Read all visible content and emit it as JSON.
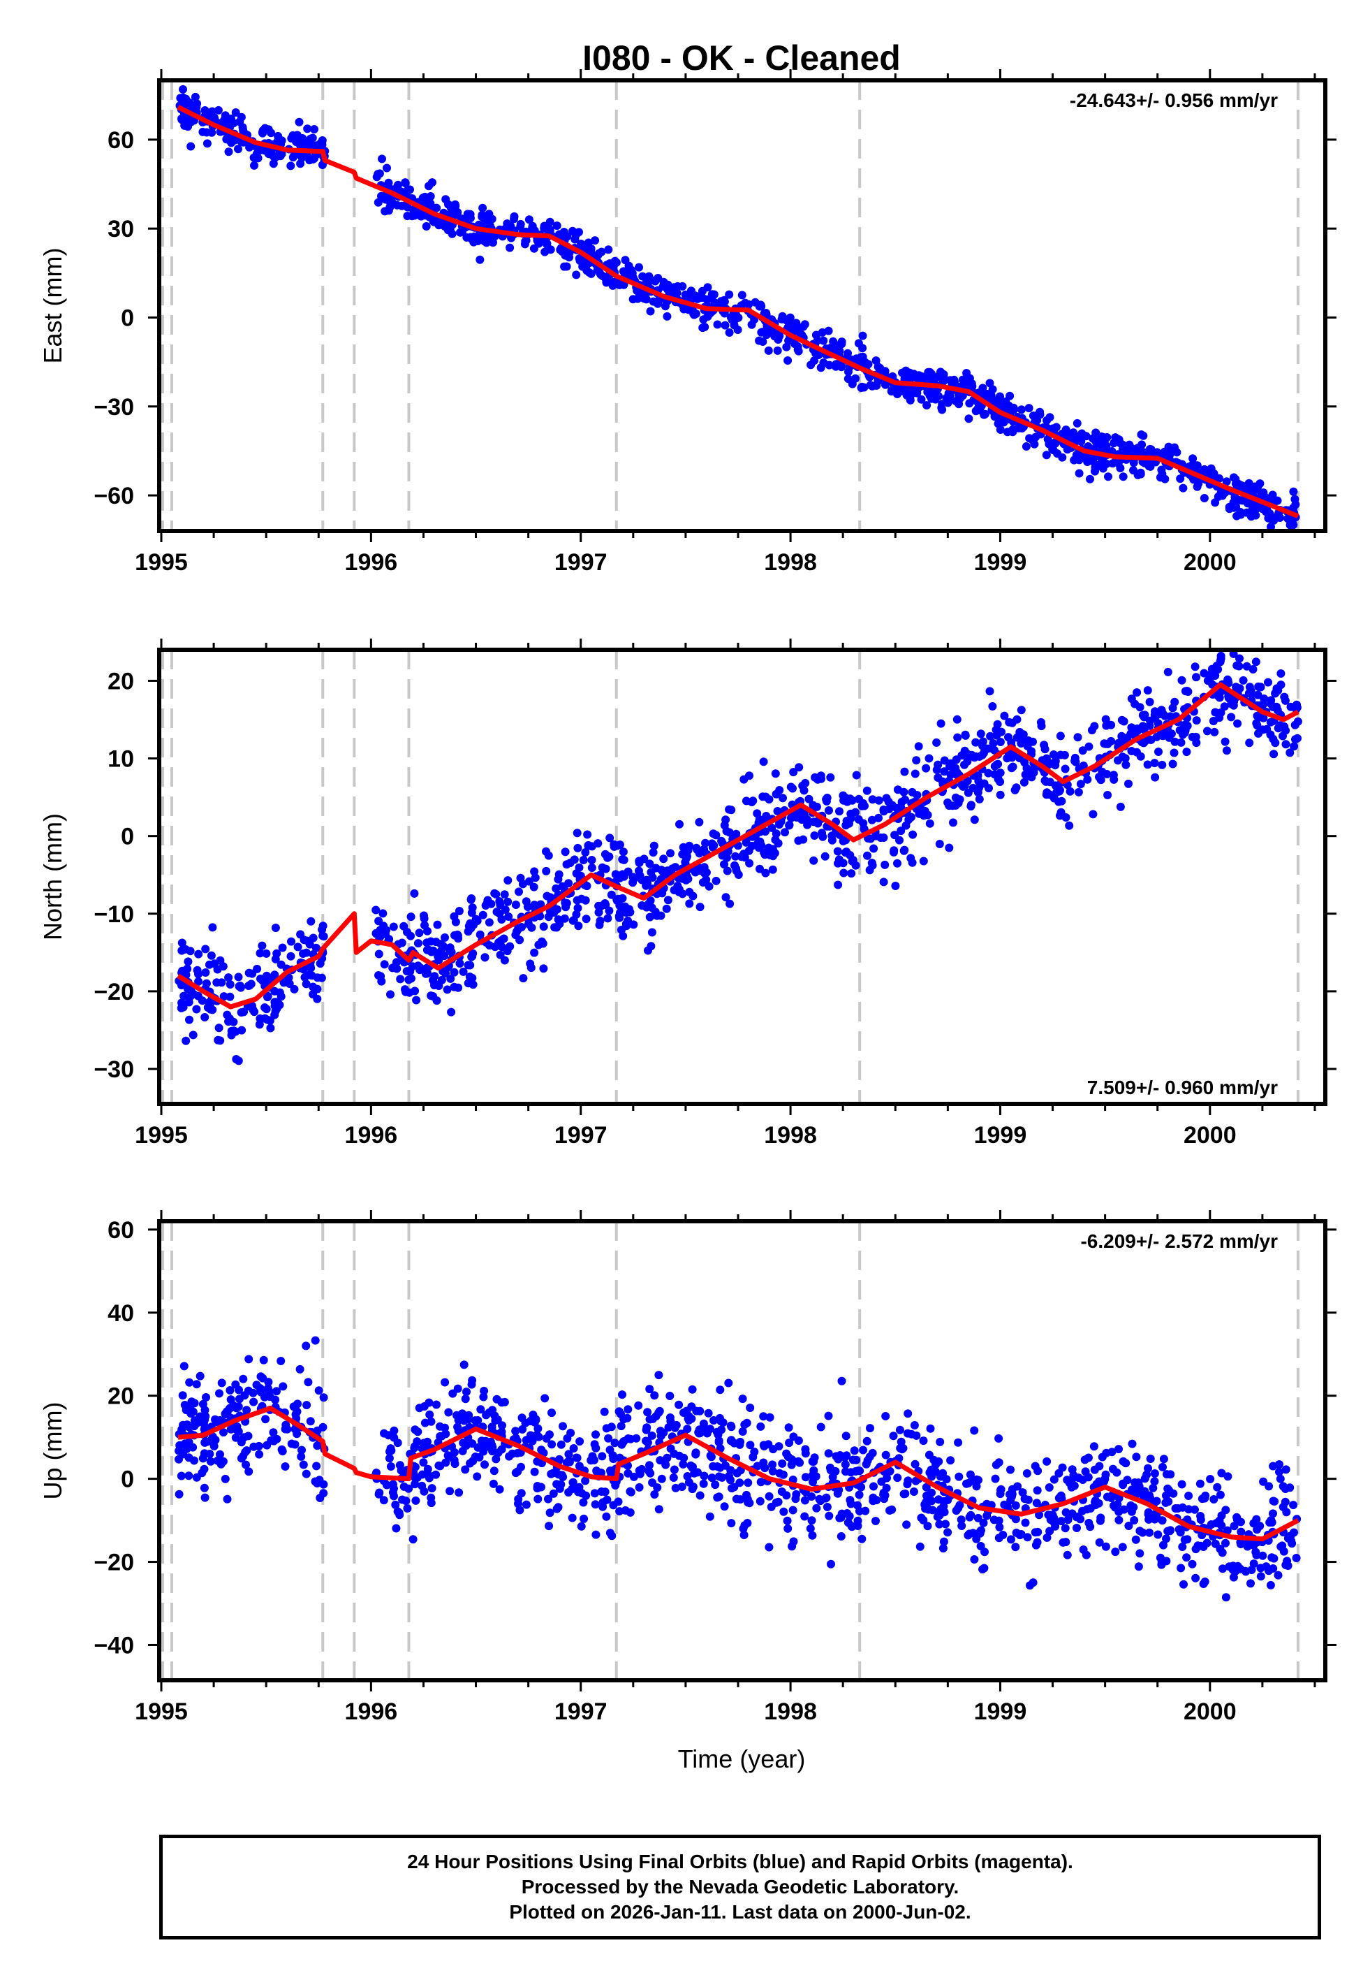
{
  "chart_data": {
    "type": "scatter",
    "title": "I080  - OK - Cleaned",
    "xlabel": "Time (year)",
    "xlim": [
      1994.99,
      2000.55
    ],
    "x_ticks": [
      1995,
      1996,
      1997,
      1998,
      1999,
      2000
    ],
    "x_tick_labels": [
      "1995",
      "1996",
      "1997",
      "1998",
      "1999",
      "2000"
    ],
    "event_lines": [
      1995.05,
      1995.77,
      1995.92,
      1996.18,
      1997.17,
      1998.33,
      2000.42
    ],
    "colors": {
      "points": "#0000ff",
      "model": "#ff0000",
      "event_line": "#c8c8c8",
      "frame": "#000000"
    },
    "panels": [
      {
        "name": "east",
        "ylabel": "East (mm)",
        "ylim": [
          -72,
          80
        ],
        "y_ticks": [
          60,
          30,
          0,
          -30,
          -60
        ],
        "y_tick_labels": [
          "60",
          "30",
          "0",
          "−30",
          "−60"
        ],
        "rate": "-24.643+/- 0.956 mm/yr",
        "rate_position": "top-right",
        "noise": 3.2,
        "model": [
          [
            1995.08,
            71
          ],
          [
            1995.25,
            65
          ],
          [
            1995.45,
            59
          ],
          [
            1995.6,
            56.5
          ],
          [
            1995.77,
            56
          ],
          [
            1995.78,
            53
          ],
          [
            1995.92,
            49
          ],
          [
            1995.93,
            47
          ],
          [
            1996.1,
            42
          ],
          [
            1996.3,
            35
          ],
          [
            1996.5,
            30
          ],
          [
            1996.7,
            28
          ],
          [
            1996.85,
            27.5
          ],
          [
            1997.0,
            22
          ],
          [
            1997.17,
            14
          ],
          [
            1997.4,
            7
          ],
          [
            1997.6,
            3
          ],
          [
            1997.8,
            2.5
          ],
          [
            1998.0,
            -6
          ],
          [
            1998.15,
            -11
          ],
          [
            1998.33,
            -17
          ],
          [
            1998.5,
            -22
          ],
          [
            1998.7,
            -23
          ],
          [
            1998.85,
            -25
          ],
          [
            1999.0,
            -32
          ],
          [
            1999.2,
            -38
          ],
          [
            1999.4,
            -45
          ],
          [
            1999.55,
            -47
          ],
          [
            1999.75,
            -47.5
          ],
          [
            1999.9,
            -52
          ],
          [
            2000.1,
            -58
          ],
          [
            2000.42,
            -67
          ]
        ],
        "points_count": 1400
      },
      {
        "name": "north",
        "ylabel": "North (mm)",
        "ylim": [
          -34.5,
          24
        ],
        "y_ticks": [
          20,
          10,
          0,
          -10,
          -20,
          -30
        ],
        "y_tick_labels": [
          "20",
          "10",
          "0",
          "−10",
          "−20",
          "−30"
        ],
        "rate": "7.509+/- 0.960 mm/yr",
        "rate_position": "bottom-right",
        "noise": 3.0,
        "model": [
          [
            1995.08,
            -18
          ],
          [
            1995.2,
            -20
          ],
          [
            1995.33,
            -22
          ],
          [
            1995.45,
            -21
          ],
          [
            1995.6,
            -17.5
          ],
          [
            1995.75,
            -15.5
          ],
          [
            1995.77,
            -14.5
          ],
          [
            1995.92,
            -10
          ],
          [
            1995.93,
            -15
          ],
          [
            1996.0,
            -13.5
          ],
          [
            1996.1,
            -14
          ],
          [
            1996.18,
            -16
          ],
          [
            1996.2,
            -15
          ],
          [
            1996.32,
            -17
          ],
          [
            1996.5,
            -14
          ],
          [
            1996.7,
            -11
          ],
          [
            1996.85,
            -9
          ],
          [
            1997.05,
            -5
          ],
          [
            1997.17,
            -6.5
          ],
          [
            1997.3,
            -8
          ],
          [
            1997.45,
            -5
          ],
          [
            1997.65,
            -2
          ],
          [
            1997.85,
            1
          ],
          [
            1998.05,
            4
          ],
          [
            1998.2,
            1.5
          ],
          [
            1998.3,
            -0.5
          ],
          [
            1998.45,
            1.5
          ],
          [
            1998.65,
            5
          ],
          [
            1998.85,
            8
          ],
          [
            1999.05,
            11.5
          ],
          [
            1999.2,
            9
          ],
          [
            1999.3,
            7
          ],
          [
            1999.45,
            9
          ],
          [
            1999.65,
            12.5
          ],
          [
            1999.85,
            15
          ],
          [
            2000.05,
            19.5
          ],
          [
            2000.25,
            16
          ],
          [
            2000.35,
            15
          ],
          [
            2000.42,
            16
          ]
        ],
        "points_count": 1400
      },
      {
        "name": "up",
        "ylabel": "Up (mm)",
        "ylim": [
          -48.5,
          62
        ],
        "y_ticks": [
          60,
          40,
          20,
          0,
          -20,
          -40
        ],
        "y_tick_labels": [
          "60",
          "40",
          "20",
          "0",
          "−20",
          "−40"
        ],
        "rate": "-6.209+/- 2.572 mm/yr",
        "rate_position": "top-right",
        "noise": 7.0,
        "model": [
          [
            1995.08,
            10
          ],
          [
            1995.2,
            10.5
          ],
          [
            1995.35,
            14
          ],
          [
            1995.52,
            17
          ],
          [
            1995.65,
            13
          ],
          [
            1995.77,
            9
          ],
          [
            1995.78,
            6
          ],
          [
            1995.92,
            2.5
          ],
          [
            1995.93,
            1.5
          ],
          [
            1996.0,
            0.5
          ],
          [
            1996.18,
            0
          ],
          [
            1996.19,
            5
          ],
          [
            1996.3,
            7
          ],
          [
            1996.5,
            12
          ],
          [
            1996.7,
            8
          ],
          [
            1996.9,
            3
          ],
          [
            1997.05,
            0.5
          ],
          [
            1997.17,
            0
          ],
          [
            1997.18,
            3.5
          ],
          [
            1997.3,
            6
          ],
          [
            1997.5,
            10.5
          ],
          [
            1997.7,
            5
          ],
          [
            1997.9,
            0
          ],
          [
            1998.1,
            -2.5
          ],
          [
            1998.3,
            -1
          ],
          [
            1998.5,
            4
          ],
          [
            1998.7,
            -2
          ],
          [
            1998.9,
            -7
          ],
          [
            1999.1,
            -8.5
          ],
          [
            1999.3,
            -6
          ],
          [
            1999.5,
            -2
          ],
          [
            1999.7,
            -6
          ],
          [
            1999.9,
            -11.5
          ],
          [
            2000.1,
            -14
          ],
          [
            2000.25,
            -14.5
          ],
          [
            2000.42,
            -10
          ]
        ],
        "points_count": 1400
      }
    ],
    "footer": [
      "24 Hour Positions Using Final Orbits (blue) and Rapid Orbits (magenta).",
      "Processed by the Nevada Geodetic Laboratory.",
      "Plotted on 2026-Jan-11. Last data on 2000-Jun-02."
    ],
    "data_gaps": [
      [
        1995.78,
        1996.02
      ]
    ],
    "x_range_data": [
      1995.08,
      2000.42
    ]
  }
}
